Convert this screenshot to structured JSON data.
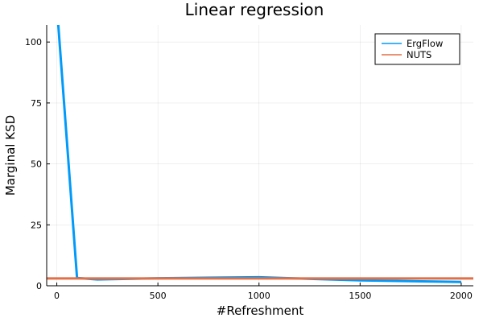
{
  "chart_data": {
    "type": "line",
    "title": "Linear regression",
    "xlabel": "#Refreshment",
    "ylabel": "Marginal KSD",
    "xlim": [
      -50,
      2060
    ],
    "ylim": [
      0,
      107
    ],
    "xticks": [
      0,
      500,
      1000,
      1500,
      2000
    ],
    "yticks": [
      0,
      25,
      50,
      75,
      100
    ],
    "grid": true,
    "legend_position": "top-right",
    "series": [
      {
        "name": "ErgFlow",
        "color": "#009af9",
        "x": [
          0,
          100,
          200,
          500,
          1000,
          1500,
          2000
        ],
        "y": [
          115,
          3.2,
          2.6,
          3.1,
          3.5,
          2.2,
          1.6
        ]
      },
      {
        "name": "NUTS",
        "color": "#e26f46",
        "x": [
          -50,
          2060
        ],
        "y": [
          3.0,
          3.0
        ]
      }
    ]
  }
}
